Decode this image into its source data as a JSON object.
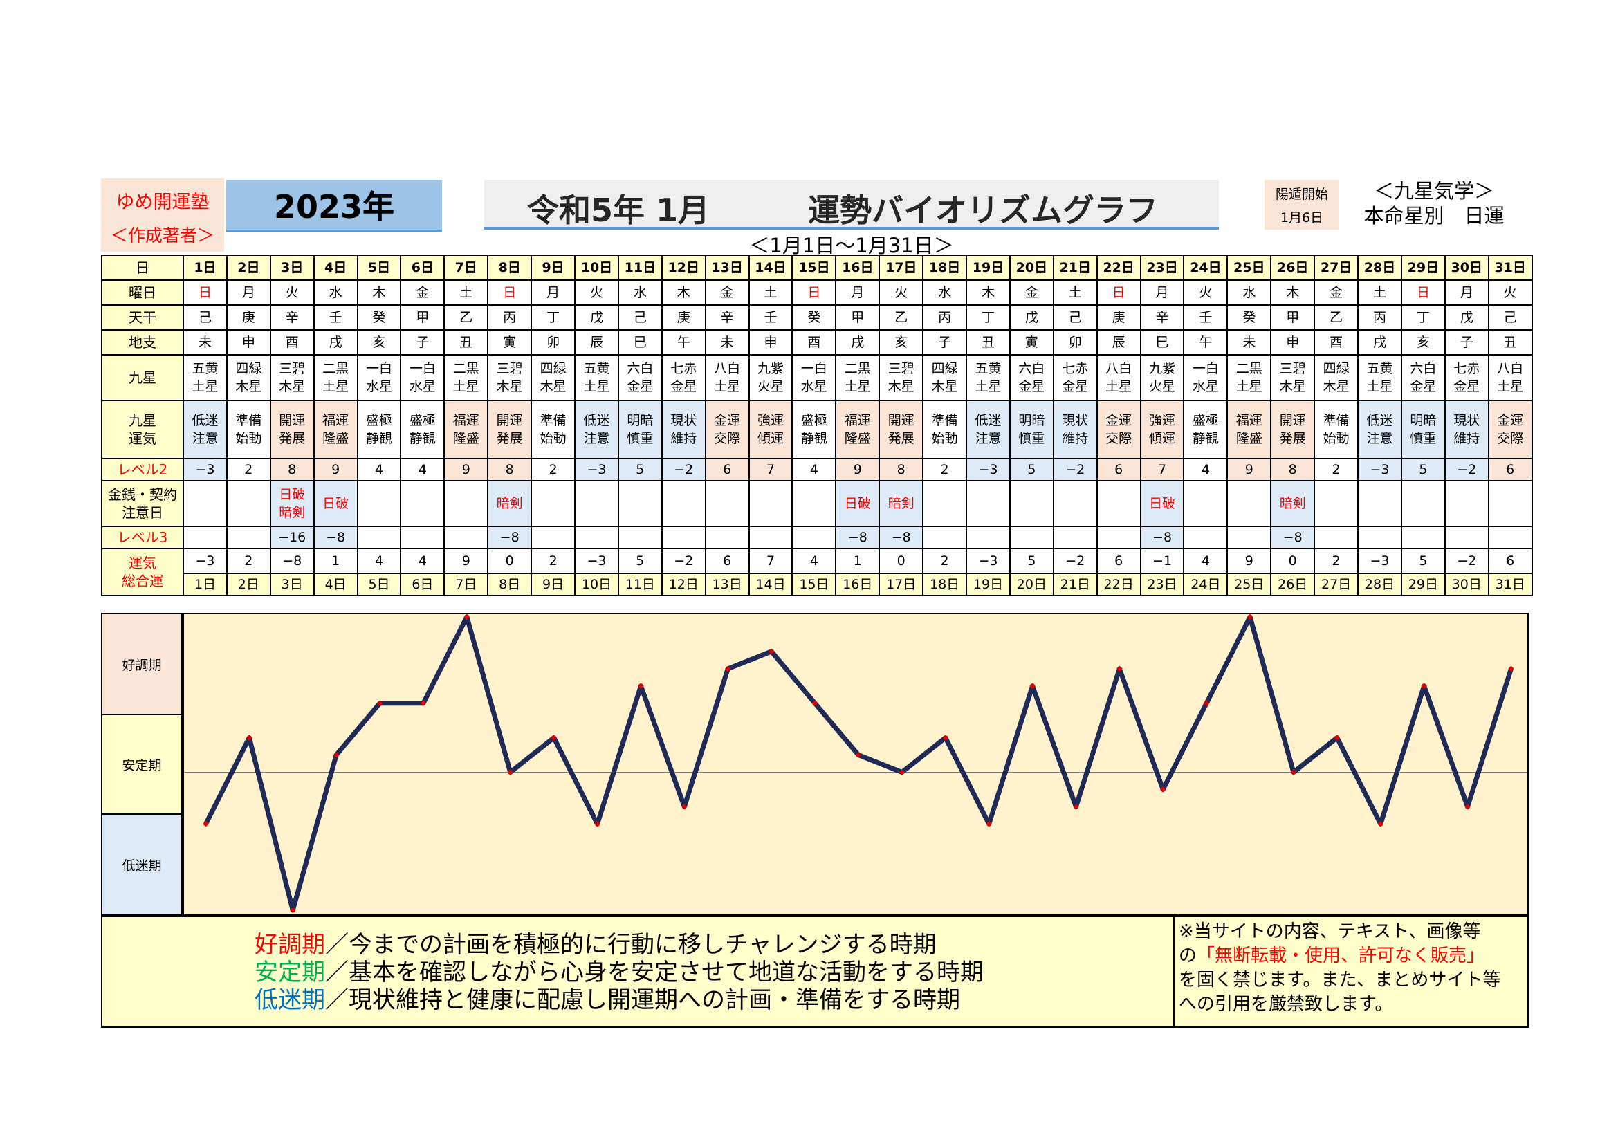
{
  "header": {
    "author_name": "ゆめ開運塾",
    "author_role": "＜作成著者＞",
    "year": "2023年",
    "title_era": "令和5年 1月",
    "title_main": "運勢バイオリズムグラフ",
    "date_range": "＜1月1日～1月31日＞",
    "yoton_label": "陽遁開始",
    "yoton_date": "1月6日",
    "system": "＜九星気学＞",
    "subtitle": "本命星別　日運"
  },
  "row_labels": {
    "day": "日",
    "weekday": "曜日",
    "tenkan": "天干",
    "chishi": "地支",
    "kyusei": "九星",
    "kyusei_unki_1": "九星",
    "kyusei_unki_2": "運気",
    "level2": "レベル2",
    "money_1": "金銭・契約",
    "money_2": "注意日",
    "level3": "レベル3",
    "total_1": "運気",
    "total_2": "総合運"
  },
  "phase_labels": [
    "好調期",
    "安定期",
    "低迷期"
  ],
  "colors": {
    "line": "#1f2a56",
    "marker": "#e00000",
    "good": "#ff0000",
    "stable": "#00b050",
    "low": "#0070c0",
    "sunday": "#ff0000",
    "row_yellow": "#ffffcc",
    "row_blue": "#deebf7",
    "row_pink": "#fbe5d6"
  },
  "days": [
    {
      "day": "1日",
      "wd": "日",
      "kan": "己",
      "shi": "未",
      "star": [
        "五黄",
        "土星"
      ],
      "unki": [
        "低迷",
        "注意"
      ],
      "lv2": "−3",
      "money": [
        "",
        ""
      ],
      "lv3": "",
      "total": "−3"
    },
    {
      "day": "2日",
      "wd": "月",
      "kan": "庚",
      "shi": "申",
      "star": [
        "四緑",
        "木星"
      ],
      "unki": [
        "準備",
        "始動"
      ],
      "lv2": "2",
      "money": [
        "",
        ""
      ],
      "lv3": "",
      "total": "2"
    },
    {
      "day": "3日",
      "wd": "火",
      "kan": "辛",
      "shi": "酉",
      "star": [
        "三碧",
        "木星"
      ],
      "unki": [
        "開運",
        "発展"
      ],
      "lv2": "8",
      "money": [
        "日破",
        "暗剣"
      ],
      "lv3": "−16",
      "total": "−8"
    },
    {
      "day": "4日",
      "wd": "水",
      "kan": "壬",
      "shi": "戌",
      "star": [
        "二黒",
        "土星"
      ],
      "unki": [
        "福運",
        "隆盛"
      ],
      "lv2": "9",
      "money": [
        "日破",
        ""
      ],
      "lv3": "−8",
      "total": "1"
    },
    {
      "day": "5日",
      "wd": "木",
      "kan": "癸",
      "shi": "亥",
      "star": [
        "一白",
        "水星"
      ],
      "unki": [
        "盛極",
        "静観"
      ],
      "lv2": "4",
      "money": [
        "",
        ""
      ],
      "lv3": "",
      "total": "4"
    },
    {
      "day": "6日",
      "wd": "金",
      "kan": "甲",
      "shi": "子",
      "star": [
        "一白",
        "水星"
      ],
      "unki": [
        "盛極",
        "静観"
      ],
      "lv2": "4",
      "money": [
        "",
        ""
      ],
      "lv3": "",
      "total": "4"
    },
    {
      "day": "7日",
      "wd": "土",
      "kan": "乙",
      "shi": "丑",
      "star": [
        "二黒",
        "土星"
      ],
      "unki": [
        "福運",
        "隆盛"
      ],
      "lv2": "9",
      "money": [
        "",
        ""
      ],
      "lv3": "",
      "total": "9"
    },
    {
      "day": "8日",
      "wd": "日",
      "kan": "丙",
      "shi": "寅",
      "star": [
        "三碧",
        "木星"
      ],
      "unki": [
        "開運",
        "発展"
      ],
      "lv2": "8",
      "money": [
        "暗剣",
        ""
      ],
      "lv3": "−8",
      "total": "0"
    },
    {
      "day": "9日",
      "wd": "月",
      "kan": "丁",
      "shi": "卯",
      "star": [
        "四緑",
        "木星"
      ],
      "unki": [
        "準備",
        "始動"
      ],
      "lv2": "2",
      "money": [
        "",
        ""
      ],
      "lv3": "",
      "total": "2"
    },
    {
      "day": "10日",
      "wd": "火",
      "kan": "戊",
      "shi": "辰",
      "star": [
        "五黄",
        "土星"
      ],
      "unki": [
        "低迷",
        "注意"
      ],
      "lv2": "−3",
      "money": [
        "",
        ""
      ],
      "lv3": "",
      "total": "−3"
    },
    {
      "day": "11日",
      "wd": "水",
      "kan": "己",
      "shi": "巳",
      "star": [
        "六白",
        "金星"
      ],
      "unki": [
        "明暗",
        "慎重"
      ],
      "lv2": "5",
      "money": [
        "",
        ""
      ],
      "lv3": "",
      "total": "5"
    },
    {
      "day": "12日",
      "wd": "木",
      "kan": "庚",
      "shi": "午",
      "star": [
        "七赤",
        "金星"
      ],
      "unki": [
        "現状",
        "維持"
      ],
      "lv2": "−2",
      "money": [
        "",
        ""
      ],
      "lv3": "",
      "total": "−2"
    },
    {
      "day": "13日",
      "wd": "金",
      "kan": "辛",
      "shi": "未",
      "star": [
        "八白",
        "土星"
      ],
      "unki": [
        "金運",
        "交際"
      ],
      "lv2": "6",
      "money": [
        "",
        ""
      ],
      "lv3": "",
      "total": "6"
    },
    {
      "day": "14日",
      "wd": "土",
      "kan": "壬",
      "shi": "申",
      "star": [
        "九紫",
        "火星"
      ],
      "unki": [
        "強運",
        "傾運"
      ],
      "lv2": "7",
      "money": [
        "",
        ""
      ],
      "lv3": "",
      "total": "7"
    },
    {
      "day": "15日",
      "wd": "日",
      "kan": "癸",
      "shi": "酉",
      "star": [
        "一白",
        "水星"
      ],
      "unki": [
        "盛極",
        "静観"
      ],
      "lv2": "4",
      "money": [
        "",
        ""
      ],
      "lv3": "",
      "total": "4"
    },
    {
      "day": "16日",
      "wd": "月",
      "kan": "甲",
      "shi": "戌",
      "star": [
        "二黒",
        "土星"
      ],
      "unki": [
        "福運",
        "隆盛"
      ],
      "lv2": "9",
      "money": [
        "日破",
        ""
      ],
      "lv3": "−8",
      "total": "1"
    },
    {
      "day": "17日",
      "wd": "火",
      "kan": "乙",
      "shi": "亥",
      "star": [
        "三碧",
        "木星"
      ],
      "unki": [
        "開運",
        "発展"
      ],
      "lv2": "8",
      "money": [
        "暗剣",
        ""
      ],
      "lv3": "−8",
      "total": "0"
    },
    {
      "day": "18日",
      "wd": "水",
      "kan": "丙",
      "shi": "子",
      "star": [
        "四緑",
        "木星"
      ],
      "unki": [
        "準備",
        "始動"
      ],
      "lv2": "2",
      "money": [
        "",
        ""
      ],
      "lv3": "",
      "total": "2"
    },
    {
      "day": "19日",
      "wd": "木",
      "kan": "丁",
      "shi": "丑",
      "star": [
        "五黄",
        "土星"
      ],
      "unki": [
        "低迷",
        "注意"
      ],
      "lv2": "−3",
      "money": [
        "",
        ""
      ],
      "lv3": "",
      "total": "−3"
    },
    {
      "day": "20日",
      "wd": "金",
      "kan": "戊",
      "shi": "寅",
      "star": [
        "六白",
        "金星"
      ],
      "unki": [
        "明暗",
        "慎重"
      ],
      "lv2": "5",
      "money": [
        "",
        ""
      ],
      "lv3": "",
      "total": "5"
    },
    {
      "day": "21日",
      "wd": "土",
      "kan": "己",
      "shi": "卯",
      "star": [
        "七赤",
        "金星"
      ],
      "unki": [
        "現状",
        "維持"
      ],
      "lv2": "−2",
      "money": [
        "",
        ""
      ],
      "lv3": "",
      "total": "−2"
    },
    {
      "day": "22日",
      "wd": "日",
      "kan": "庚",
      "shi": "辰",
      "star": [
        "八白",
        "土星"
      ],
      "unki": [
        "金運",
        "交際"
      ],
      "lv2": "6",
      "money": [
        "",
        ""
      ],
      "lv3": "",
      "total": "6"
    },
    {
      "day": "23日",
      "wd": "月",
      "kan": "辛",
      "shi": "巳",
      "star": [
        "九紫",
        "火星"
      ],
      "unki": [
        "強運",
        "傾運"
      ],
      "lv2": "7",
      "money": [
        "日破",
        ""
      ],
      "lv3": "−8",
      "total": "−1"
    },
    {
      "day": "24日",
      "wd": "火",
      "kan": "壬",
      "shi": "午",
      "star": [
        "一白",
        "水星"
      ],
      "unki": [
        "盛極",
        "静観"
      ],
      "lv2": "4",
      "money": [
        "",
        ""
      ],
      "lv3": "",
      "total": "4"
    },
    {
      "day": "25日",
      "wd": "水",
      "kan": "癸",
      "shi": "未",
      "star": [
        "二黒",
        "土星"
      ],
      "unki": [
        "福運",
        "隆盛"
      ],
      "lv2": "9",
      "money": [
        "",
        ""
      ],
      "lv3": "",
      "total": "9"
    },
    {
      "day": "26日",
      "wd": "木",
      "kan": "甲",
      "shi": "申",
      "star": [
        "三碧",
        "木星"
      ],
      "unki": [
        "開運",
        "発展"
      ],
      "lv2": "8",
      "money": [
        "暗剣",
        ""
      ],
      "lv3": "−8",
      "total": "0"
    },
    {
      "day": "27日",
      "wd": "金",
      "kan": "乙",
      "shi": "酉",
      "star": [
        "四緑",
        "木星"
      ],
      "unki": [
        "準備",
        "始動"
      ],
      "lv2": "2",
      "money": [
        "",
        ""
      ],
      "lv3": "",
      "total": "2"
    },
    {
      "day": "28日",
      "wd": "土",
      "kan": "丙",
      "shi": "戌",
      "star": [
        "五黄",
        "土星"
      ],
      "unki": [
        "低迷",
        "注意"
      ],
      "lv2": "−3",
      "money": [
        "",
        ""
      ],
      "lv3": "",
      "total": "−3"
    },
    {
      "day": "29日",
      "wd": "日",
      "kan": "丁",
      "shi": "亥",
      "star": [
        "六白",
        "金星"
      ],
      "unki": [
        "明暗",
        "慎重"
      ],
      "lv2": "5",
      "money": [
        "",
        ""
      ],
      "lv3": "",
      "total": "5"
    },
    {
      "day": "30日",
      "wd": "月",
      "kan": "戊",
      "shi": "子",
      "star": [
        "七赤",
        "金星"
      ],
      "unki": [
        "現状",
        "維持"
      ],
      "lv2": "−2",
      "money": [
        "",
        ""
      ],
      "lv3": "",
      "total": "−2"
    },
    {
      "day": "31日",
      "wd": "火",
      "kan": "己",
      "shi": "丑",
      "star": [
        "八白",
        "土星"
      ],
      "unki": [
        "金運",
        "交際"
      ],
      "lv2": "6",
      "money": [
        "",
        ""
      ],
      "lv3": "",
      "total": "6"
    }
  ],
  "chart_data": {
    "type": "line",
    "categories": [
      "1日",
      "2日",
      "3日",
      "4日",
      "5日",
      "6日",
      "7日",
      "8日",
      "9日",
      "10日",
      "11日",
      "12日",
      "13日",
      "14日",
      "15日",
      "16日",
      "17日",
      "18日",
      "19日",
      "20日",
      "21日",
      "22日",
      "23日",
      "24日",
      "25日",
      "26日",
      "27日",
      "28日",
      "29日",
      "30日",
      "31日"
    ],
    "series": [
      {
        "values": [
          -3,
          2,
          -8,
          1,
          4,
          4,
          9,
          0,
          2,
          -3,
          5,
          -2,
          6,
          7,
          4,
          1,
          0,
          2,
          -3,
          5,
          -2,
          6,
          -1,
          4,
          9,
          0,
          2,
          -3,
          5,
          -2,
          6
        ]
      }
    ],
    "ylim": [
      -8,
      9
    ],
    "grid": false,
    "reference_line": 0
  },
  "legend": {
    "good_term": "好調期",
    "good_text": "／今までの計画を積極的に行動に移しチャレンジする時期",
    "stable_term": "安定期",
    "stable_text": "／基本を確認しながら心身を安定させて地道な活動をする時期",
    "low_term": "低迷期",
    "low_text": "／現状維持と健康に配慮し開運期への計画・準備をする時期"
  },
  "notice": {
    "line1": "※当サイトの内容、テキスト、画像等",
    "line2_pre": "の",
    "line2_red": "「無断転載・使用、許可なく販売」",
    "line3": "を固く禁じます。また、まとめサイト等",
    "line4": "への引用を厳禁致します。"
  }
}
